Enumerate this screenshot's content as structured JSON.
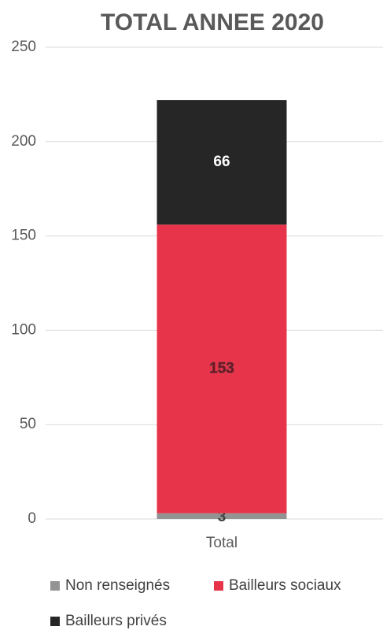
{
  "chart_data": {
    "type": "bar",
    "stacked": true,
    "title": "TOTAL ANNEE 2020",
    "categories": [
      "Total"
    ],
    "series": [
      {
        "name": "Non renseignés",
        "color": "#939393",
        "values": [
          3
        ]
      },
      {
        "name": "Bailleurs sociaux",
        "color": "#e8344a",
        "values": [
          153
        ]
      },
      {
        "name": "Bailleurs privés",
        "color": "#262626",
        "values": [
          66
        ]
      }
    ],
    "ylim": [
      0,
      250
    ],
    "yticks": [
      0,
      50,
      100,
      150,
      200,
      250
    ],
    "grid": true
  }
}
